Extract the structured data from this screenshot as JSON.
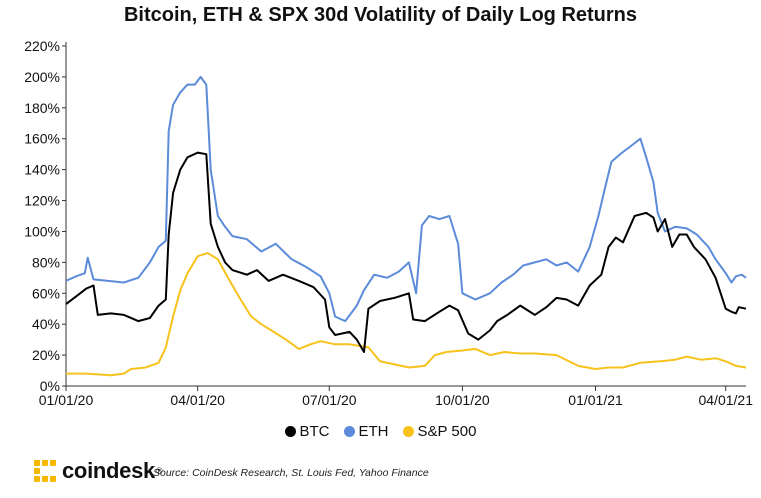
{
  "chart_data": {
    "type": "line",
    "title": "Bitcoin, ETH & SPX 30d Volatility of Daily Log Returns",
    "xlabel": "",
    "ylabel": "",
    "x_range": [
      "2020-01-01",
      "2021-04-15"
    ],
    "x_ticks": [
      {
        "date": "2020-01-01",
        "label": "01/01/20"
      },
      {
        "date": "2020-04-01",
        "label": "04/01/20"
      },
      {
        "date": "2020-07-01",
        "label": "07/01/20"
      },
      {
        "date": "2020-10-01",
        "label": "10/01/20"
      },
      {
        "date": "2021-01-01",
        "label": "01/01/21"
      },
      {
        "date": "2021-04-01",
        "label": "04/01/21"
      }
    ],
    "ylim": [
      0,
      220
    ],
    "y_ticks": [
      0,
      20,
      40,
      60,
      80,
      100,
      120,
      140,
      160,
      180,
      200,
      220
    ],
    "y_tick_labels": [
      "0%",
      "20%",
      "40%",
      "60%",
      "80%",
      "100%",
      "120%",
      "140%",
      "160%",
      "180%",
      "200%",
      "220%"
    ],
    "grid": false,
    "legend_position": "bottom-center",
    "series": [
      {
        "name": "BTC",
        "color": "#000000",
        "points": [
          [
            "2020-01-01",
            53
          ],
          [
            "2020-01-08",
            58
          ],
          [
            "2020-01-15",
            63
          ],
          [
            "2020-01-20",
            65
          ],
          [
            "2020-01-23",
            46
          ],
          [
            "2020-02-01",
            47
          ],
          [
            "2020-02-10",
            46
          ],
          [
            "2020-02-20",
            42
          ],
          [
            "2020-02-28",
            44
          ],
          [
            "2020-03-05",
            52
          ],
          [
            "2020-03-10",
            56
          ],
          [
            "2020-03-12",
            98
          ],
          [
            "2020-03-15",
            125
          ],
          [
            "2020-03-20",
            140
          ],
          [
            "2020-03-25",
            148
          ],
          [
            "2020-04-01",
            151
          ],
          [
            "2020-04-07",
            150
          ],
          [
            "2020-04-10",
            105
          ],
          [
            "2020-04-15",
            90
          ],
          [
            "2020-04-20",
            80
          ],
          [
            "2020-04-25",
            75
          ],
          [
            "2020-05-05",
            72
          ],
          [
            "2020-05-12",
            75
          ],
          [
            "2020-05-20",
            68
          ],
          [
            "2020-05-30",
            72
          ],
          [
            "2020-06-10",
            68
          ],
          [
            "2020-06-20",
            64
          ],
          [
            "2020-06-28",
            56
          ],
          [
            "2020-07-01",
            38
          ],
          [
            "2020-07-05",
            33
          ],
          [
            "2020-07-15",
            35
          ],
          [
            "2020-07-20",
            30
          ],
          [
            "2020-07-25",
            22
          ],
          [
            "2020-07-28",
            50
          ],
          [
            "2020-08-05",
            55
          ],
          [
            "2020-08-15",
            57
          ],
          [
            "2020-08-25",
            60
          ],
          [
            "2020-08-28",
            43
          ],
          [
            "2020-09-05",
            42
          ],
          [
            "2020-09-15",
            48
          ],
          [
            "2020-09-22",
            52
          ],
          [
            "2020-09-28",
            49
          ],
          [
            "2020-10-05",
            34
          ],
          [
            "2020-10-12",
            30
          ],
          [
            "2020-10-20",
            36
          ],
          [
            "2020-10-25",
            42
          ],
          [
            "2020-11-01",
            46
          ],
          [
            "2020-11-10",
            52
          ],
          [
            "2020-11-20",
            46
          ],
          [
            "2020-11-28",
            51
          ],
          [
            "2020-12-05",
            57
          ],
          [
            "2020-12-12",
            56
          ],
          [
            "2020-12-20",
            52
          ],
          [
            "2020-12-28",
            65
          ],
          [
            "2021-01-05",
            72
          ],
          [
            "2021-01-10",
            90
          ],
          [
            "2021-01-15",
            96
          ],
          [
            "2021-01-20",
            93
          ],
          [
            "2021-01-28",
            110
          ],
          [
            "2021-02-05",
            112
          ],
          [
            "2021-02-10",
            109
          ],
          [
            "2021-02-13",
            100
          ],
          [
            "2021-02-18",
            108
          ],
          [
            "2021-02-23",
            90
          ],
          [
            "2021-02-28",
            98
          ],
          [
            "2021-03-05",
            98
          ],
          [
            "2021-03-10",
            90
          ],
          [
            "2021-03-18",
            82
          ],
          [
            "2021-03-25",
            70
          ],
          [
            "2021-04-01",
            50
          ],
          [
            "2021-04-05",
            48
          ],
          [
            "2021-04-08",
            47
          ],
          [
            "2021-04-10",
            51
          ],
          [
            "2021-04-15",
            50
          ]
        ]
      },
      {
        "name": "ETH",
        "color": "#5b8bd9",
        "points": [
          [
            "2020-01-01",
            68
          ],
          [
            "2020-01-08",
            71
          ],
          [
            "2020-01-14",
            73
          ],
          [
            "2020-01-16",
            83
          ],
          [
            "2020-01-20",
            69
          ],
          [
            "2020-01-30",
            68
          ],
          [
            "2020-02-10",
            67
          ],
          [
            "2020-02-20",
            70
          ],
          [
            "2020-02-28",
            80
          ],
          [
            "2020-03-05",
            90
          ],
          [
            "2020-03-10",
            94
          ],
          [
            "2020-03-12",
            165
          ],
          [
            "2020-03-15",
            182
          ],
          [
            "2020-03-20",
            190
          ],
          [
            "2020-03-25",
            195
          ],
          [
            "2020-03-30",
            195
          ],
          [
            "2020-04-03",
            200
          ],
          [
            "2020-04-07",
            195
          ],
          [
            "2020-04-10",
            140
          ],
          [
            "2020-04-15",
            110
          ],
          [
            "2020-04-20",
            103
          ],
          [
            "2020-04-25",
            97
          ],
          [
            "2020-05-05",
            95
          ],
          [
            "2020-05-15",
            87
          ],
          [
            "2020-05-25",
            92
          ],
          [
            "2020-06-05",
            82
          ],
          [
            "2020-06-15",
            77
          ],
          [
            "2020-06-25",
            71
          ],
          [
            "2020-07-01",
            60
          ],
          [
            "2020-07-05",
            45
          ],
          [
            "2020-07-12",
            42
          ],
          [
            "2020-07-20",
            52
          ],
          [
            "2020-07-25",
            62
          ],
          [
            "2020-08-01",
            72
          ],
          [
            "2020-08-10",
            70
          ],
          [
            "2020-08-18",
            74
          ],
          [
            "2020-08-25",
            80
          ],
          [
            "2020-08-30",
            60
          ],
          [
            "2020-09-03",
            104
          ],
          [
            "2020-09-08",
            110
          ],
          [
            "2020-09-15",
            108
          ],
          [
            "2020-09-22",
            110
          ],
          [
            "2020-09-28",
            92
          ],
          [
            "2020-10-01",
            60
          ],
          [
            "2020-10-10",
            56
          ],
          [
            "2020-10-20",
            60
          ],
          [
            "2020-10-28",
            67
          ],
          [
            "2020-11-05",
            72
          ],
          [
            "2020-11-12",
            78
          ],
          [
            "2020-11-20",
            80
          ],
          [
            "2020-11-28",
            82
          ],
          [
            "2020-12-05",
            78
          ],
          [
            "2020-12-12",
            80
          ],
          [
            "2020-12-20",
            74
          ],
          [
            "2020-12-28",
            90
          ],
          [
            "2021-01-03",
            110
          ],
          [
            "2021-01-08",
            130
          ],
          [
            "2021-01-12",
            145
          ],
          [
            "2021-01-18",
            150
          ],
          [
            "2021-01-25",
            155
          ],
          [
            "2021-02-01",
            160
          ],
          [
            "2021-02-05",
            148
          ],
          [
            "2021-02-10",
            132
          ],
          [
            "2021-02-13",
            112
          ],
          [
            "2021-02-18",
            100
          ],
          [
            "2021-02-25",
            103
          ],
          [
            "2021-03-05",
            102
          ],
          [
            "2021-03-12",
            98
          ],
          [
            "2021-03-20",
            90
          ],
          [
            "2021-03-25",
            82
          ],
          [
            "2021-04-01",
            73
          ],
          [
            "2021-04-05",
            67
          ],
          [
            "2021-04-08",
            71
          ],
          [
            "2021-04-12",
            72
          ],
          [
            "2021-04-15",
            70
          ]
        ]
      },
      {
        "name": "S&P 500",
        "color": "#f7c21b",
        "points": [
          [
            "2020-01-01",
            8
          ],
          [
            "2020-01-15",
            8
          ],
          [
            "2020-02-01",
            7
          ],
          [
            "2020-02-10",
            8
          ],
          [
            "2020-02-15",
            11
          ],
          [
            "2020-02-25",
            12
          ],
          [
            "2020-03-05",
            15
          ],
          [
            "2020-03-10",
            25
          ],
          [
            "2020-03-15",
            45
          ],
          [
            "2020-03-20",
            62
          ],
          [
            "2020-03-25",
            73
          ],
          [
            "2020-04-01",
            84
          ],
          [
            "2020-04-08",
            86
          ],
          [
            "2020-04-15",
            82
          ],
          [
            "2020-04-22",
            70
          ],
          [
            "2020-04-30",
            57
          ],
          [
            "2020-05-08",
            45
          ],
          [
            "2020-05-15",
            40
          ],
          [
            "2020-05-22",
            36
          ],
          [
            "2020-06-01",
            30
          ],
          [
            "2020-06-10",
            24
          ],
          [
            "2020-06-18",
            27
          ],
          [
            "2020-06-25",
            29
          ],
          [
            "2020-07-05",
            27
          ],
          [
            "2020-07-15",
            27
          ],
          [
            "2020-07-28",
            25
          ],
          [
            "2020-08-05",
            16
          ],
          [
            "2020-08-15",
            14
          ],
          [
            "2020-08-25",
            12
          ],
          [
            "2020-09-05",
            13
          ],
          [
            "2020-09-12",
            20
          ],
          [
            "2020-09-20",
            22
          ],
          [
            "2020-10-01",
            23
          ],
          [
            "2020-10-10",
            24
          ],
          [
            "2020-10-20",
            20
          ],
          [
            "2020-10-30",
            22
          ],
          [
            "2020-11-10",
            21
          ],
          [
            "2020-11-20",
            21
          ],
          [
            "2020-12-05",
            20
          ],
          [
            "2020-12-20",
            13
          ],
          [
            "2021-01-01",
            11
          ],
          [
            "2021-01-10",
            12
          ],
          [
            "2021-01-20",
            12
          ],
          [
            "2021-02-01",
            15
          ],
          [
            "2021-02-15",
            16
          ],
          [
            "2021-02-25",
            17
          ],
          [
            "2021-03-05",
            19
          ],
          [
            "2021-03-15",
            17
          ],
          [
            "2021-03-25",
            18
          ],
          [
            "2021-04-01",
            16
          ],
          [
            "2021-04-08",
            13
          ],
          [
            "2021-04-15",
            12
          ]
        ]
      }
    ]
  },
  "legend": {
    "items": [
      {
        "label": "BTC",
        "color": "#000000"
      },
      {
        "label": "ETH",
        "color": "#5b8bd9"
      },
      {
        "label": "S&P 500",
        "color": "#f7c21b"
      }
    ]
  },
  "footer": {
    "logo_text": "coindesk",
    "logo_reg": "®",
    "logo_color": "#f5b700",
    "source": "Source: CoinDesk Research, St. Louis Fed, Yahoo Finance"
  }
}
